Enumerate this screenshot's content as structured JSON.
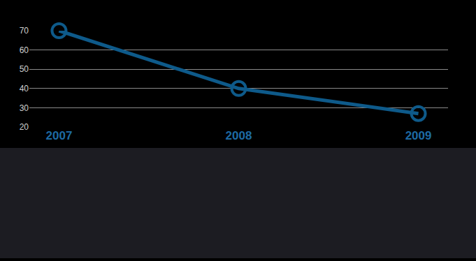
{
  "chart_data": {
    "type": "line",
    "categories": [
      "2007",
      "2008",
      "2009"
    ],
    "values": [
      70,
      40,
      27
    ],
    "color": "#0e5a8a",
    "ylim": [
      20,
      70
    ],
    "yticks": [
      20,
      30,
      40,
      50,
      60,
      70
    ],
    "grid": true,
    "marker": "circle-open"
  }
}
